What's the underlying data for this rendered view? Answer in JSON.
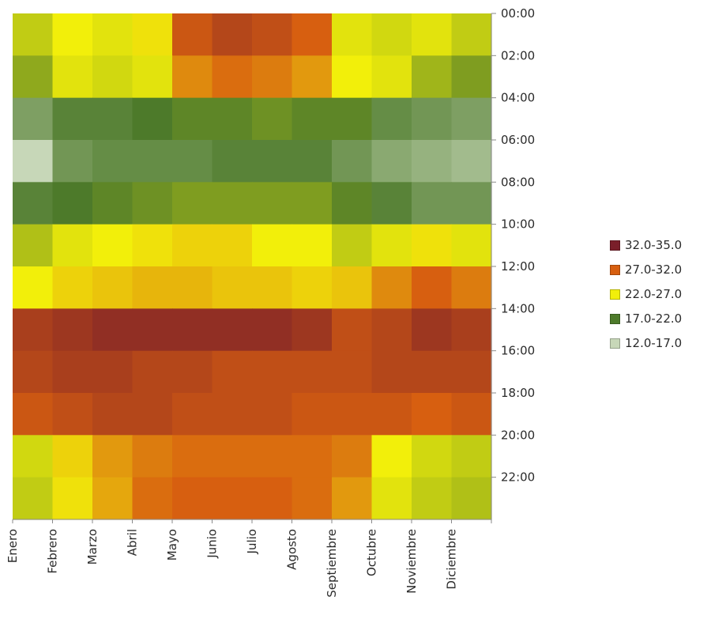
{
  "chart_data": {
    "type": "heatmap",
    "title": "",
    "xlabel": "",
    "ylabel": "",
    "categories": [
      "Enero",
      "Febrero",
      "Marzo",
      "Abril",
      "Mayo",
      "Junio",
      "Julio",
      "Agosto",
      "Septiembre",
      "Octubre",
      "Noviembre",
      "Diciembre"
    ],
    "y_ticks": [
      "00:00",
      "02:00",
      "04:00",
      "06:00",
      "08:00",
      "10:00",
      "12:00",
      "14:00",
      "16:00",
      "18:00",
      "20:00",
      "22:00"
    ],
    "y_axis_position": "right",
    "legend_position": "right",
    "grid": false,
    "legend": [
      {
        "label": "32.0-35.0",
        "range": [
          32,
          35
        ],
        "color": "#7a1f2a"
      },
      {
        "label": "27.0-32.0",
        "range": [
          27,
          32
        ],
        "color": "#d75f10"
      },
      {
        "label": "22.0-27.0",
        "range": [
          22,
          27
        ],
        "color": "#f2ef0a"
      },
      {
        "label": "17.0-22.0",
        "range": [
          17,
          22
        ],
        "color": "#4d7a2a"
      },
      {
        "label": "12.0-17.0",
        "range": [
          12,
          17
        ],
        "color": "#c7d7b8"
      }
    ],
    "values": [
      [
        23.0,
        24.5,
        24.0,
        25.0,
        30.0,
        31.0,
        30.5,
        29.5,
        24.0,
        23.5,
        24.0,
        23.0
      ],
      [
        21.5,
        24.0,
        23.5,
        24.0,
        28.0,
        29.0,
        28.5,
        27.5,
        24.5,
        24.0,
        22.0,
        21.0
      ],
      [
        17.5,
        19.0,
        19.0,
        19.5,
        20.0,
        20.0,
        20.5,
        20.0,
        20.0,
        18.5,
        18.0,
        17.5
      ],
      [
        14.0,
        18.0,
        18.5,
        18.5,
        18.5,
        19.0,
        19.0,
        19.0,
        18.0,
        17.0,
        16.5,
        16.0
      ],
      [
        19.0,
        19.5,
        20.0,
        20.5,
        21.0,
        21.0,
        21.0,
        21.0,
        20.0,
        19.0,
        18.0,
        18.0
      ],
      [
        22.5,
        24.0,
        24.5,
        25.0,
        25.5,
        25.5,
        24.5,
        24.5,
        23.0,
        24.0,
        25.0,
        24.0
      ],
      [
        24.5,
        25.5,
        26.0,
        26.5,
        26.5,
        26.0,
        26.0,
        25.5,
        26.0,
        28.0,
        29.5,
        28.5
      ],
      [
        31.5,
        32.0,
        32.5,
        32.5,
        32.5,
        32.5,
        32.5,
        32.0,
        30.5,
        31.0,
        32.0,
        31.5
      ],
      [
        31.0,
        31.5,
        31.5,
        31.0,
        31.0,
        30.5,
        30.5,
        30.5,
        30.5,
        31.0,
        31.0,
        31.0
      ],
      [
        30.0,
        30.5,
        31.0,
        31.0,
        30.5,
        30.5,
        30.5,
        30.0,
        30.0,
        30.0,
        29.5,
        30.0
      ],
      [
        23.5,
        25.5,
        27.5,
        28.5,
        29.0,
        29.0,
        29.0,
        29.0,
        28.5,
        24.5,
        23.5,
        23.0
      ],
      [
        23.0,
        25.0,
        27.0,
        29.0,
        29.5,
        29.5,
        29.5,
        29.0,
        27.5,
        24.0,
        23.0,
        22.5
      ]
    ]
  }
}
